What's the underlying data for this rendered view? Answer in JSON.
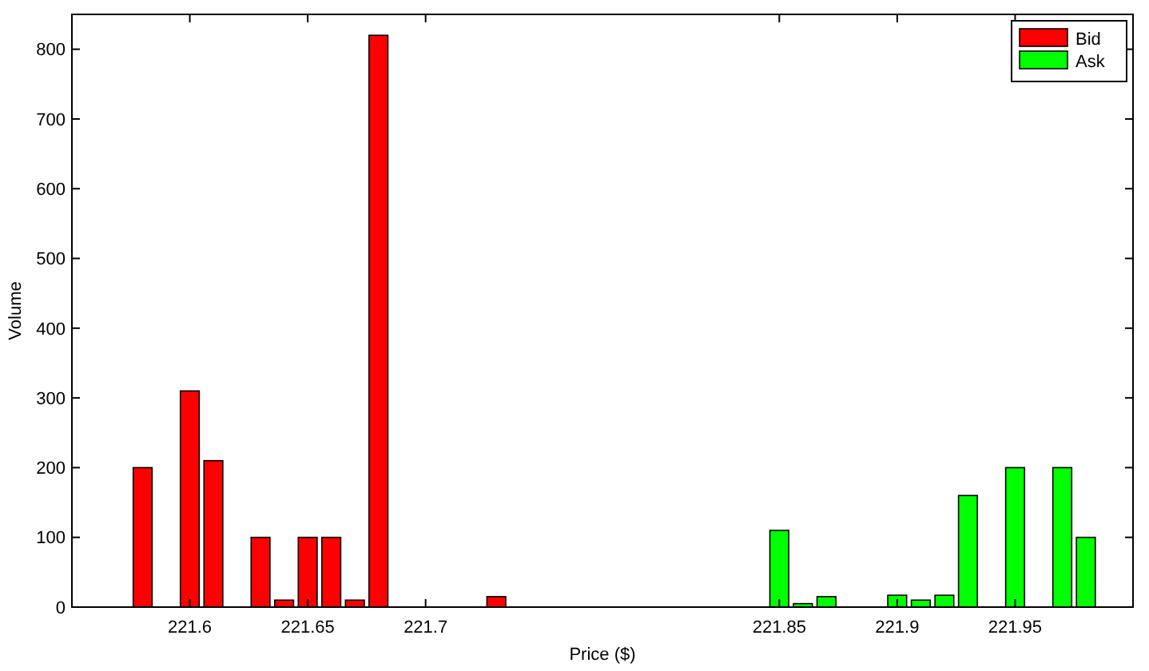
{
  "chart_data": {
    "type": "bar",
    "xlabel": "Price ($)",
    "ylabel": "Volume",
    "xlim": [
      221.55,
      222.0
    ],
    "xticks": [
      221.6,
      221.65,
      221.7,
      221.85,
      221.9,
      221.95
    ],
    "ylim": [
      0,
      850
    ],
    "yticks": [
      0,
      100,
      200,
      300,
      400,
      500,
      600,
      700,
      800
    ],
    "legend": "top right",
    "grid": false,
    "series": [
      {
        "name": "Bid",
        "color": "#ff0000",
        "x": [
          221.58,
          221.6,
          221.61,
          221.63,
          221.64,
          221.65,
          221.66,
          221.67,
          221.68,
          221.73
        ],
        "values": [
          200,
          310,
          210,
          100,
          10,
          100,
          100,
          10,
          820,
          15
        ]
      },
      {
        "name": "Ask",
        "color": "#00ff00",
        "x": [
          221.85,
          221.86,
          221.87,
          221.9,
          221.91,
          221.92,
          221.93,
          221.95,
          221.97,
          221.98
        ],
        "values": [
          110,
          5,
          15,
          17,
          10,
          17,
          160,
          200,
          200,
          100
        ]
      }
    ]
  }
}
